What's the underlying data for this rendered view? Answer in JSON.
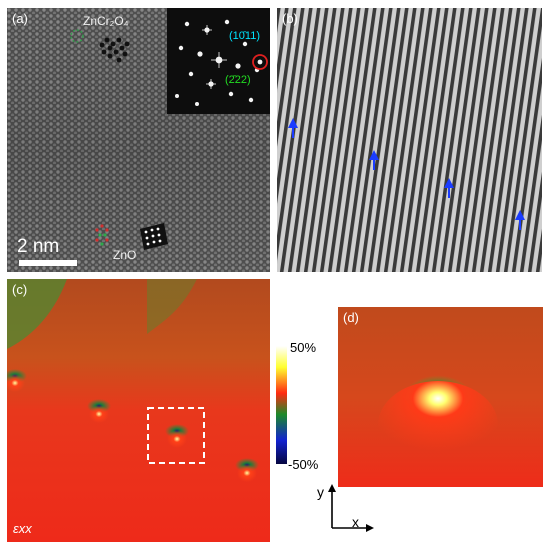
{
  "panel_a": {
    "label": "(a)",
    "upper_phase": "ZnCr₂O₄",
    "lower_phase": "ZnO",
    "scale_bar": "2 nm",
    "inset_spot_1": "(10̄11)",
    "inset_spot_2": "(2̄22)",
    "colors": {
      "spot_1": "#00e5ff",
      "spot_2": "#22dd22",
      "circle": "#e02020"
    }
  },
  "panel_b": {
    "label": "(b)",
    "arrow_color": "#1a3cff"
  },
  "panel_c": {
    "label": "(c)",
    "component": "εxx",
    "colorbar_max": "50%",
    "colorbar_min": "-50%"
  },
  "panel_d": {
    "label": "(d)",
    "axis_y": "y",
    "axis_x": "x"
  }
}
